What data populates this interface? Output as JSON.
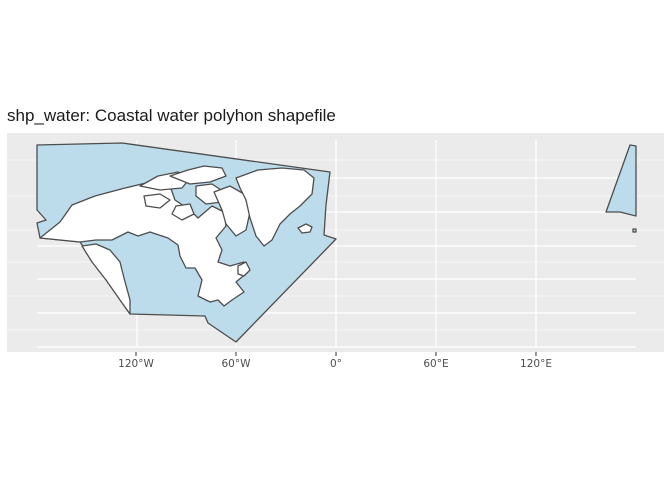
{
  "title": "shp_water: Coastal water polyhon shapefile",
  "map": {
    "panel_color": "#ebebeb",
    "grid_color": "#ffffff",
    "water_fill": "#bcdcec",
    "land_fill": "#ffffff",
    "outline_color": "#4d4d4d",
    "x_ticks": [
      {
        "value": -120,
        "label": "120°W"
      },
      {
        "value": -60,
        "label": "60°W"
      },
      {
        "value": 0,
        "label": "0°"
      },
      {
        "value": 60,
        "label": "60°E"
      },
      {
        "value": 120,
        "label": "120°E"
      }
    ]
  }
}
